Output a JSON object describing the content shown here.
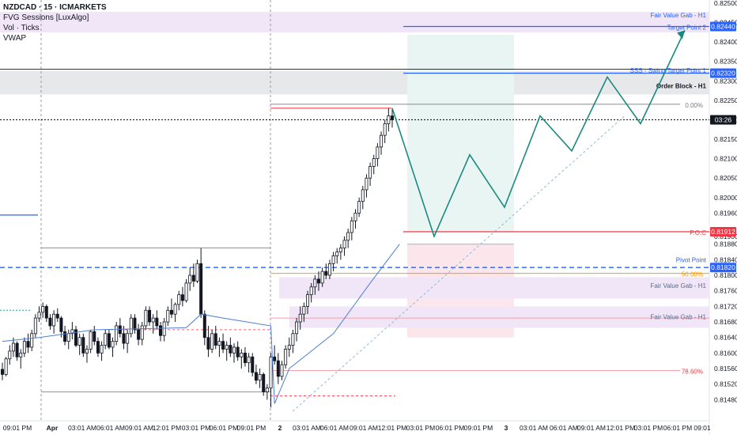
{
  "header": {
    "symbol_line": "NZDCAD · 15 · ICMARKETS",
    "indicators": [
      "FVG Sessions [LuxAlgo]",
      "Vol · Ticks",
      "VWAP"
    ]
  },
  "colors": {
    "up": "#000000",
    "down": "#000000",
    "vwap": "#4a7fd4",
    "projection": "#1a8a80",
    "accent_blue": "#2962ff",
    "red": "#f23645",
    "orange": "#ff9800",
    "fvg_fill": "#f1e6f8",
    "ob_fill": "#e7e8ea"
  },
  "chart_data": {
    "type": "candlestick",
    "y_axis": {
      "range": [
        0.8144,
        0.825
      ],
      "ticks": [
        "0.82500",
        "0.82450",
        "0.82400",
        "0.82350",
        "0.82300",
        "0.82250",
        "0.82200",
        "0.82150",
        "0.82100",
        "0.82050",
        "0.82000",
        "0.81960",
        "0.81900",
        "0.81880",
        "0.81840",
        "0.81800",
        "0.81760",
        "0.81720",
        "0.81680",
        "0.81640",
        "0.81600",
        "0.81560",
        "0.81520",
        "0.81480"
      ]
    },
    "x_axis_labels": [
      "09:01 PM",
      "Apr",
      "03:01 AM",
      "06:01 AM",
      "09:01 AM",
      "12:01 PM",
      "03:01 PM",
      "06:01 PM",
      "09:01 PM",
      "2",
      "03:01 AM",
      "06:01 AM",
      "09:01 AM",
      "12:01 PM",
      "03:01 PM",
      "06:01 PM",
      "09:01 PM",
      "3",
      "03:01 AM",
      "06:01 AM",
      "09:01 AM",
      "12:01 PM",
      "03:01 PM",
      "06:01 PM",
      "09:01"
    ],
    "price_badges": [
      {
        "label": "0.82440",
        "value": 0.8244,
        "color": "#2962ff"
      },
      {
        "label": "0.82320",
        "value": 0.8232,
        "color": "#2962ff"
      },
      {
        "label": "03:26",
        "value": 0.822,
        "color": "#131722"
      },
      {
        "label": "0.81912",
        "value": 0.81912,
        "color": "#f23645"
      },
      {
        "label": "0.81820",
        "value": 0.8182,
        "color": "#2962ff"
      }
    ],
    "levels": [
      {
        "label": "Fair Value Gab - H1",
        "value": 0.82455,
        "color": "#2962ff"
      },
      {
        "label": "Target Point 2",
        "value": 0.8244,
        "color": "#2962ff"
      },
      {
        "label": "SSS - Swing Target Point 1",
        "value": 0.82325,
        "color": "#2962ff"
      },
      {
        "label": "Order Block - H1",
        "value": 0.82285,
        "color": "#131722"
      },
      {
        "label": "0.00%",
        "value": 0.8224,
        "color": "#787b86"
      },
      {
        "label": "P.O.C",
        "value": 0.81912,
        "color": "#f23645"
      },
      {
        "label": "Pivot Point",
        "value": 0.8183,
        "color": "#2962ff"
      },
      {
        "label": "50.00%",
        "value": 0.81805,
        "color": "#ff9800"
      },
      {
        "label": "Fair Value Gab - H1",
        "value": 0.81755,
        "color": "#5b6b8a"
      },
      {
        "label": "Fair Value Gab - H1",
        "value": 0.81695,
        "color": "#5b6b8a"
      },
      {
        "label": "78.60%",
        "value": 0.81555,
        "color": "#f23645"
      }
    ],
    "candles": [
      [
        0.81558,
        0.81575,
        0.8153,
        0.81545
      ],
      [
        0.81545,
        0.8159,
        0.8154,
        0.81585
      ],
      [
        0.81585,
        0.8162,
        0.8157,
        0.81605
      ],
      [
        0.81605,
        0.8164,
        0.8159,
        0.81625
      ],
      [
        0.81625,
        0.8163,
        0.8158,
        0.8159
      ],
      [
        0.8159,
        0.8161,
        0.8156,
        0.816
      ],
      [
        0.816,
        0.8164,
        0.8159,
        0.8163
      ],
      [
        0.8163,
        0.8165,
        0.816,
        0.81615
      ],
      [
        0.81615,
        0.8166,
        0.81605,
        0.8165
      ],
      [
        0.8165,
        0.817,
        0.8164,
        0.8169
      ],
      [
        0.8169,
        0.8172,
        0.8168,
        0.81705
      ],
      [
        0.81705,
        0.8173,
        0.8169,
        0.8172
      ],
      [
        0.8172,
        0.81725,
        0.8168,
        0.8169
      ],
      [
        0.8169,
        0.817,
        0.8166,
        0.8167
      ],
      [
        0.8167,
        0.8171,
        0.8165,
        0.817
      ],
      [
        0.817,
        0.81715,
        0.8168,
        0.8169
      ],
      [
        0.8169,
        0.81695,
        0.8164,
        0.81655
      ],
      [
        0.81655,
        0.8167,
        0.8162,
        0.8163
      ],
      [
        0.8163,
        0.8166,
        0.8161,
        0.8165
      ],
      [
        0.8165,
        0.8168,
        0.81635,
        0.8166
      ],
      [
        0.8166,
        0.8167,
        0.81615,
        0.8162
      ],
      [
        0.8162,
        0.8165,
        0.81595,
        0.8164
      ],
      [
        0.8164,
        0.8165,
        0.8159,
        0.816
      ],
      [
        0.816,
        0.8162,
        0.81575,
        0.8161
      ],
      [
        0.8161,
        0.8166,
        0.816,
        0.81655
      ],
      [
        0.81655,
        0.8167,
        0.8162,
        0.8163
      ],
      [
        0.8163,
        0.8164,
        0.8159,
        0.816
      ],
      [
        0.816,
        0.8163,
        0.8158,
        0.8162
      ],
      [
        0.8162,
        0.8166,
        0.8161,
        0.8165
      ],
      [
        0.8165,
        0.8166,
        0.8161,
        0.81615
      ],
      [
        0.81615,
        0.8164,
        0.8159,
        0.8163
      ],
      [
        0.8163,
        0.8168,
        0.8162,
        0.8167
      ],
      [
        0.8167,
        0.8169,
        0.8164,
        0.8165
      ],
      [
        0.8165,
        0.8167,
        0.8161,
        0.81625
      ],
      [
        0.81625,
        0.8166,
        0.816,
        0.8165
      ],
      [
        0.8165,
        0.817,
        0.8164,
        0.8169
      ],
      [
        0.8169,
        0.817,
        0.8165,
        0.8166
      ],
      [
        0.8166,
        0.81675,
        0.8162,
        0.81635
      ],
      [
        0.81635,
        0.8168,
        0.8162,
        0.8167
      ],
      [
        0.8167,
        0.8172,
        0.8166,
        0.8171
      ],
      [
        0.8171,
        0.8172,
        0.8167,
        0.8168
      ],
      [
        0.8168,
        0.817,
        0.8165,
        0.8169
      ],
      [
        0.8169,
        0.8171,
        0.8166,
        0.8167
      ],
      [
        0.8167,
        0.8168,
        0.8163,
        0.81645
      ],
      [
        0.81645,
        0.8169,
        0.8163,
        0.8168
      ],
      [
        0.8168,
        0.8172,
        0.8167,
        0.8171
      ],
      [
        0.8171,
        0.8174,
        0.8169,
        0.817
      ],
      [
        0.817,
        0.8173,
        0.8168,
        0.81725
      ],
      [
        0.81725,
        0.8176,
        0.8171,
        0.8175
      ],
      [
        0.8175,
        0.8177,
        0.8172,
        0.81735
      ],
      [
        0.81735,
        0.8179,
        0.8173,
        0.8178
      ],
      [
        0.8178,
        0.8182,
        0.8176,
        0.818
      ],
      [
        0.818,
        0.8183,
        0.8177,
        0.81785
      ],
      [
        0.81785,
        0.8184,
        0.8178,
        0.8183
      ],
      [
        0.8183,
        0.8187,
        0.8169,
        0.817
      ],
      [
        0.817,
        0.8171,
        0.8162,
        0.8164
      ],
      [
        0.8164,
        0.8167,
        0.8159,
        0.8161
      ],
      [
        0.8161,
        0.8166,
        0.816,
        0.8165
      ],
      [
        0.8165,
        0.8167,
        0.8161,
        0.8162
      ],
      [
        0.8162,
        0.8164,
        0.8159,
        0.8163
      ],
      [
        0.8163,
        0.8165,
        0.816,
        0.8161
      ],
      [
        0.8161,
        0.8163,
        0.8158,
        0.8162
      ],
      [
        0.8162,
        0.8164,
        0.8159,
        0.816
      ],
      [
        0.816,
        0.81625,
        0.81575,
        0.81615
      ],
      [
        0.81615,
        0.8163,
        0.8158,
        0.8159
      ],
      [
        0.8159,
        0.8161,
        0.8156,
        0.816
      ],
      [
        0.816,
        0.81615,
        0.81565,
        0.81575
      ],
      [
        0.81575,
        0.816,
        0.8155,
        0.8159
      ],
      [
        0.8159,
        0.816,
        0.8154,
        0.8155
      ],
      [
        0.8155,
        0.8157,
        0.8152,
        0.8153
      ],
      [
        0.8153,
        0.8156,
        0.8151,
        0.81545
      ],
      [
        0.81545,
        0.8155,
        0.8149,
        0.815
      ],
      [
        0.815,
        0.8152,
        0.8148,
        0.8151
      ],
      [
        0.8151,
        0.816,
        0.8146,
        0.8159
      ],
      [
        0.8159,
        0.8162,
        0.8157,
        0.8158
      ],
      [
        0.8158,
        0.816,
        0.8152,
        0.8154
      ],
      [
        0.8154,
        0.8158,
        0.8153,
        0.8157
      ],
      [
        0.8157,
        0.8162,
        0.8156,
        0.8161
      ],
      [
        0.8161,
        0.8164,
        0.8159,
        0.8162
      ],
      [
        0.8162,
        0.8166,
        0.816,
        0.8165
      ],
      [
        0.8165,
        0.8169,
        0.8163,
        0.8168
      ],
      [
        0.8168,
        0.8172,
        0.8166,
        0.817
      ],
      [
        0.817,
        0.8173,
        0.8168,
        0.8172
      ],
      [
        0.8172,
        0.8176,
        0.817,
        0.8175
      ],
      [
        0.8175,
        0.8178,
        0.8173,
        0.8177
      ],
      [
        0.8177,
        0.818,
        0.8175,
        0.8179
      ],
      [
        0.8179,
        0.8181,
        0.8176,
        0.8178
      ],
      [
        0.8178,
        0.8182,
        0.8177,
        0.8181
      ],
      [
        0.8181,
        0.8183,
        0.8179,
        0.818
      ],
      [
        0.818,
        0.8184,
        0.8179,
        0.8183
      ],
      [
        0.8183,
        0.8186,
        0.8181,
        0.8185
      ],
      [
        0.8185,
        0.8187,
        0.8183,
        0.8186
      ],
      [
        0.8186,
        0.8188,
        0.8184,
        0.8187
      ],
      [
        0.8187,
        0.819,
        0.8185,
        0.8189
      ],
      [
        0.8189,
        0.8192,
        0.8187,
        0.8191
      ],
      [
        0.8191,
        0.8195,
        0.8189,
        0.8194
      ],
      [
        0.8194,
        0.8197,
        0.8192,
        0.8196
      ],
      [
        0.8196,
        0.82,
        0.8195,
        0.8199
      ],
      [
        0.8199,
        0.8203,
        0.8197,
        0.8202
      ],
      [
        0.8202,
        0.8206,
        0.82,
        0.8205
      ],
      [
        0.8205,
        0.8209,
        0.8203,
        0.8208
      ],
      [
        0.8208,
        0.8211,
        0.8206,
        0.821
      ],
      [
        0.821,
        0.8214,
        0.8208,
        0.8213
      ],
      [
        0.8213,
        0.8217,
        0.8211,
        0.8216
      ],
      [
        0.8216,
        0.822,
        0.8214,
        0.8219
      ],
      [
        0.8219,
        0.8223,
        0.8217,
        0.8221
      ],
      [
        0.8221,
        0.8223,
        0.8218,
        0.822
      ]
    ],
    "vwap": [
      [
        0,
        0.8163
      ],
      [
        10,
        0.8164
      ],
      [
        25,
        0.8166
      ],
      [
        50,
        0.81665
      ],
      [
        54,
        0.817
      ],
      [
        60,
        0.8169
      ],
      [
        73,
        0.8167
      ],
      [
        74,
        0.8147
      ],
      [
        78,
        0.8156
      ],
      [
        90,
        0.8165
      ],
      [
        100,
        0.8178
      ],
      [
        108,
        0.8188
      ]
    ]
  }
}
